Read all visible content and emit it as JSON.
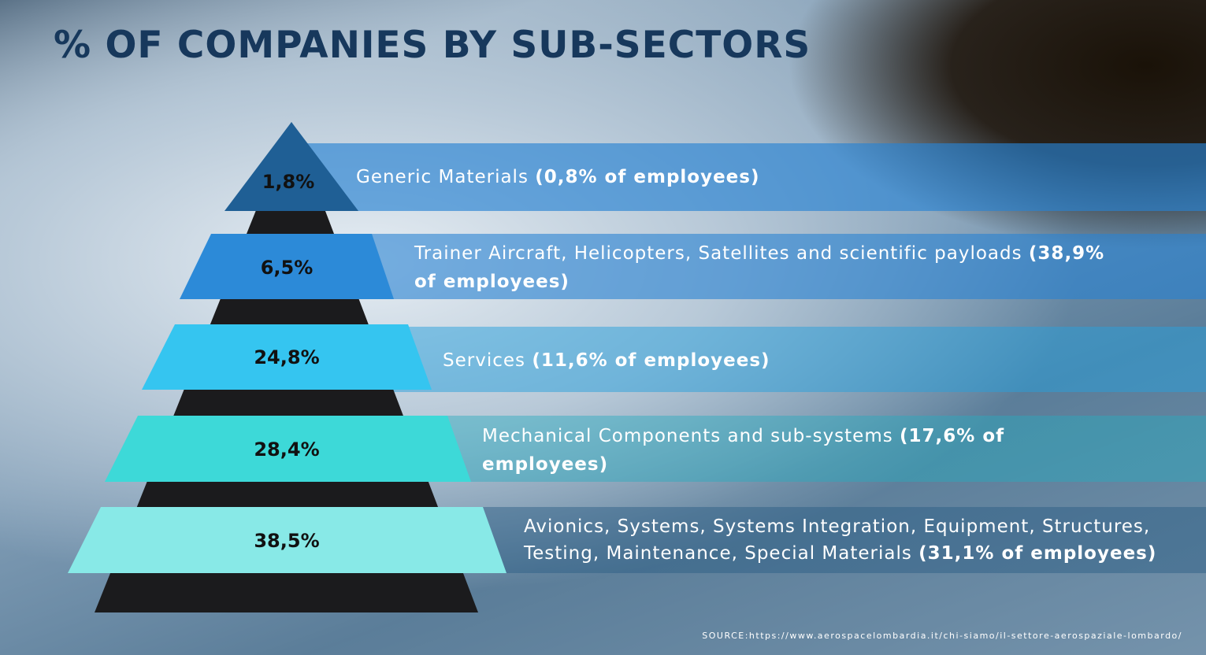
{
  "header": {
    "title": "% OF COMPANIES BY SUB-SECTORS"
  },
  "tiers": [
    {
      "percent": "1,8%",
      "label": "Generic Materials",
      "emphasis": "(0,8% of employees)"
    },
    {
      "percent": "6,5%",
      "label": "Trainer Aircraft, Helicopters, Satellites and scientific payloads",
      "emphasis": "(38,9% of employees)"
    },
    {
      "percent": "24,8%",
      "label": "Services",
      "emphasis": "(11,6% of employees)"
    },
    {
      "percent": "28,4%",
      "label": "Mechanical Components and sub-systems",
      "emphasis": "(17,6% of employees)"
    },
    {
      "percent": "38,5%",
      "label": "Avionics, Systems, Systems Integration, Equipment, Structures, Testing, Maintenance, Special Materials",
      "emphasis": "(31,1% of employees)"
    }
  ],
  "footer": {
    "source": "SOURCE:https://www.aerospacelombardia.it/chi-siamo/il-settore-aerospaziale-lombardo/"
  }
}
